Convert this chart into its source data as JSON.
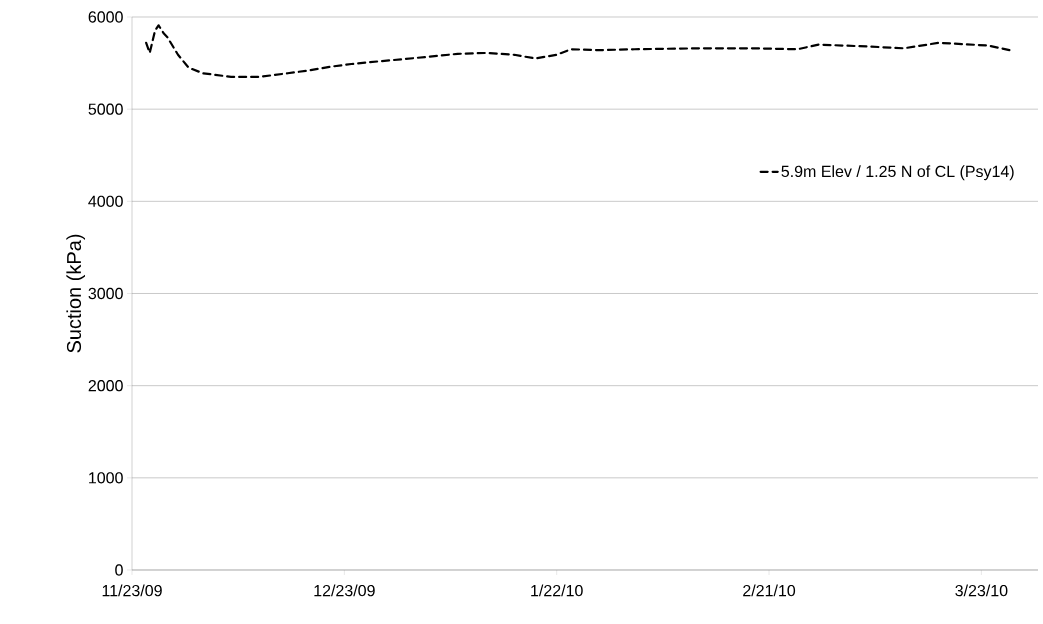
{
  "chart_data": {
    "type": "line",
    "ylabel": "Suction (kPa)",
    "xlim": [
      "2009-11-23",
      "2010-03-31"
    ],
    "xticks": [
      {
        "value": "2009-11-23",
        "label": "11/23/09"
      },
      {
        "value": "2009-12-23",
        "label": "12/23/09"
      },
      {
        "value": "2010-01-22",
        "label": "1/22/10"
      },
      {
        "value": "2010-02-21",
        "label": "2/21/10"
      },
      {
        "value": "2010-03-23",
        "label": "3/23/10"
      }
    ],
    "ylim": [
      0,
      6000
    ],
    "yticks": [
      0,
      1000,
      2000,
      3000,
      4000,
      5000,
      6000
    ],
    "grid": "y",
    "legend": "right",
    "marker": "none",
    "line_style": "dashed",
    "series": [
      {
        "name": "5.9m Elev / 1.25 N of CL (Psy14)",
        "color": "#000000",
        "x": [
          "2009-11-25T00:00",
          "2009-11-25T12:00",
          "2009-11-26T06:00",
          "2009-11-26T18:00",
          "2009-11-27T12:00",
          "2009-11-28",
          "2009-11-29T12:00",
          "2009-12-01",
          "2009-12-03",
          "2009-12-07",
          "2009-12-11",
          "2009-12-15",
          "2009-12-18",
          "2009-12-21",
          "2009-12-24",
          "2009-12-28",
          "2009-12-31",
          "2010-01-04",
          "2010-01-08",
          "2010-01-12",
          "2010-01-16",
          "2010-01-19",
          "2010-01-22",
          "2010-01-24",
          "2010-01-28",
          "2010-02-02",
          "2010-02-11",
          "2010-02-19",
          "2010-02-25",
          "2010-02-28",
          "2010-03-07",
          "2010-03-12",
          "2010-03-17",
          "2010-03-24",
          "2010-03-27"
        ],
        "values": [
          5720,
          5610,
          5850,
          5910,
          5820,
          5780,
          5590,
          5450,
          5390,
          5350,
          5350,
          5390,
          5420,
          5460,
          5490,
          5520,
          5540,
          5570,
          5600,
          5610,
          5590,
          5550,
          5590,
          5650,
          5640,
          5650,
          5660,
          5660,
          5650,
          5700,
          5680,
          5660,
          5720,
          5690,
          5640
        ]
      }
    ]
  }
}
